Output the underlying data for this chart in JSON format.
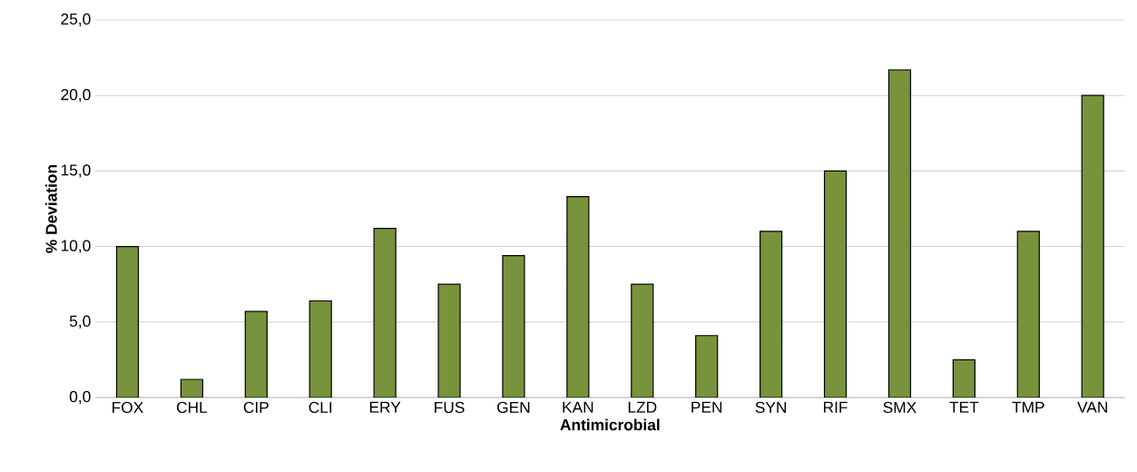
{
  "chart_data": {
    "type": "bar",
    "xlabel": "Antimicrobial",
    "ylabel": "% Deviation",
    "categories": [
      "FOX",
      "CHL",
      "CIP",
      "CLI",
      "ERY",
      "FUS",
      "GEN",
      "KAN",
      "LZD",
      "PEN",
      "SYN",
      "RIF",
      "SMX",
      "TET",
      "TMP",
      "VAN"
    ],
    "values": [
      10.0,
      1.2,
      5.7,
      6.4,
      11.2,
      7.5,
      9.4,
      13.3,
      7.5,
      4.1,
      11.0,
      15.0,
      21.7,
      2.5,
      11.0,
      20.0
    ],
    "color": "#77933c",
    "ylim": [
      0,
      25
    ],
    "yticks": [
      {
        "value": 0,
        "label": "0,0"
      },
      {
        "value": 5,
        "label": "5,0"
      },
      {
        "value": 10,
        "label": "10,0"
      },
      {
        "value": 15,
        "label": "15,0"
      },
      {
        "value": 20,
        "label": "20,0"
      },
      {
        "value": 25,
        "label": "25,0"
      }
    ],
    "grid": "y"
  }
}
